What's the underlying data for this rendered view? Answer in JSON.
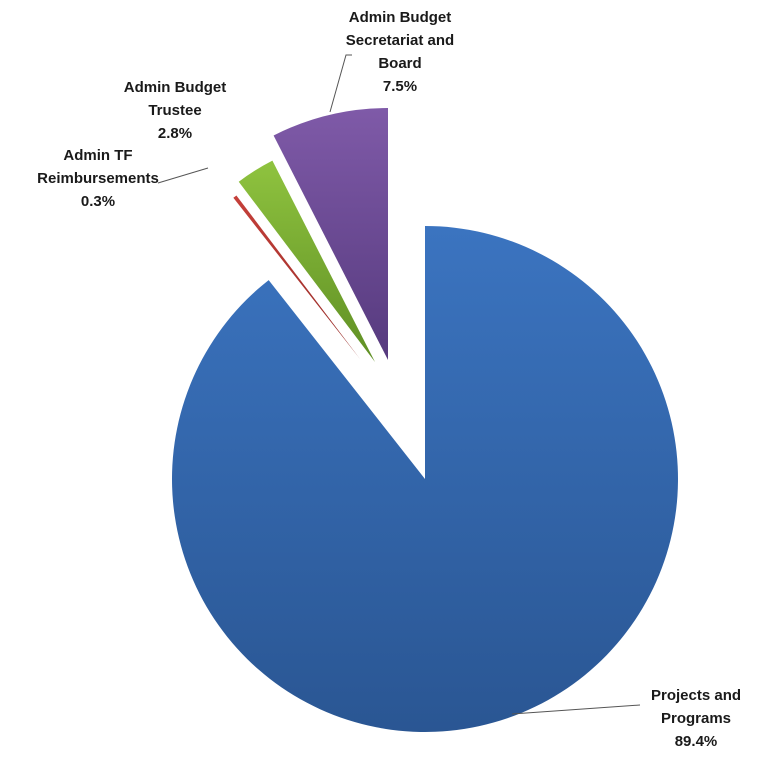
{
  "chart_data": {
    "type": "pie",
    "title": "",
    "exploded": true,
    "slices": [
      {
        "name_lines": [
          "Projects and",
          "Programs"
        ],
        "pct_label": "89.4%",
        "value": 89.4,
        "color": "#3b74c0",
        "color_dark": "#2a5693"
      },
      {
        "name_lines": [
          "Admin TF",
          "Reimbursements"
        ],
        "pct_label": "0.3%",
        "value": 0.3,
        "color": "#c6403a",
        "color_dark": "#932a26"
      },
      {
        "name_lines": [
          "Admin Budget",
          "Trustee"
        ],
        "pct_label": "2.8%",
        "value": 2.8,
        "color": "#8fc33f",
        "color_dark": "#5f8f24"
      },
      {
        "name_lines": [
          "Admin Budget",
          "Secretariat and",
          "Board"
        ],
        "pct_label": "7.5%",
        "value": 7.5,
        "color": "#7f5aa8",
        "color_dark": "#563a7e"
      }
    ]
  }
}
